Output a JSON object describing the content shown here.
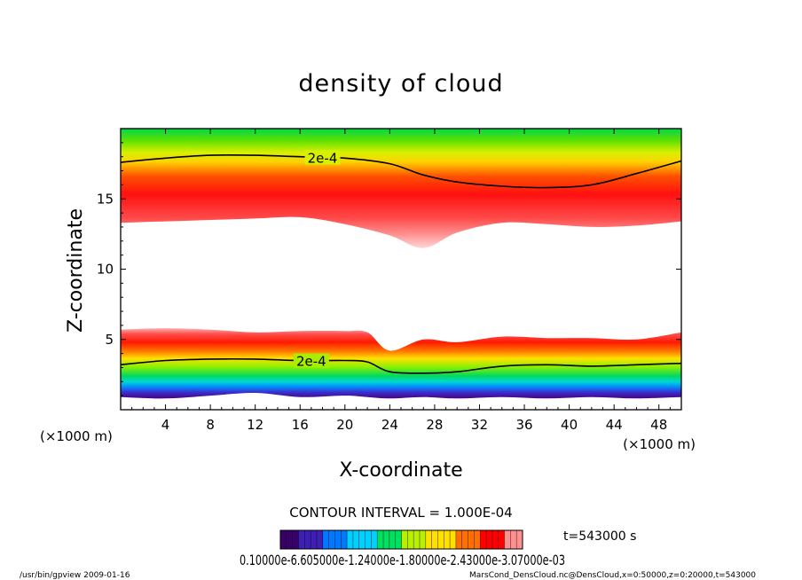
{
  "chart_data": {
    "type": "heatmap",
    "title": "density of cloud",
    "xlabel": "X-coordinate",
    "ylabel": "Z-coordinate",
    "x_unit": "(×1000 m)",
    "y_unit": "(×1000 m)",
    "xlim": [
      0,
      50
    ],
    "ylim": [
      0,
      20
    ],
    "x_ticks": [
      4,
      8,
      12,
      16,
      20,
      24,
      28,
      32,
      36,
      40,
      44,
      48
    ],
    "y_ticks": [
      5,
      10,
      15
    ],
    "contour_label": "2e-4",
    "contour_interval": "CONTOUR INTERVAL = 1.000E-04",
    "time_label": "t=543000 s",
    "colorbar_labels_text": "0.10000e-6.605000e-1.24000e-1.80000e-2.43000e-3.07000e-03",
    "upper_band": {
      "x": [
        0,
        4,
        8,
        12,
        16,
        20,
        24,
        27,
        30,
        34,
        38,
        42,
        46,
        50
      ],
      "bottom": [
        13.3,
        13.4,
        13.5,
        13.6,
        13.7,
        13.2,
        12.4,
        11.5,
        12.6,
        13.3,
        13.2,
        13.0,
        13.1,
        13.4
      ],
      "contour_2e4": [
        17.6,
        17.9,
        18.1,
        18.1,
        18.0,
        17.9,
        17.5,
        16.7,
        16.2,
        15.9,
        15.8,
        16.0,
        16.8,
        17.7
      ]
    },
    "lower_band": {
      "x": [
        0,
        4,
        8,
        12,
        16,
        20,
        22,
        24,
        27,
        30,
        34,
        38,
        42,
        46,
        50
      ],
      "top": [
        5.7,
        5.8,
        5.7,
        5.5,
        5.6,
        5.6,
        5.5,
        4.2,
        5.0,
        4.8,
        5.2,
        5.1,
        5.1,
        5.0,
        5.5
      ],
      "contour_2e4": [
        3.2,
        3.5,
        3.6,
        3.6,
        3.5,
        3.5,
        3.4,
        2.7,
        2.6,
        2.7,
        3.1,
        3.2,
        3.1,
        3.2,
        3.3
      ],
      "base": [
        0.9,
        0.8,
        1.0,
        1.2,
        0.9,
        1.0,
        0.9,
        0.8,
        0.9,
        0.8,
        0.9,
        0.8,
        0.9,
        0.8,
        0.9
      ]
    },
    "colormap": [
      "#3a006a",
      "#3d1fb5",
      "#0078ff",
      "#00d0ff",
      "#00e060",
      "#b8f000",
      "#ffe000",
      "#ff7000",
      "#ff0000",
      "#ff9090",
      "#ffffff"
    ]
  },
  "footer": {
    "left": "/usr/bin/gpview   2009-01-16",
    "right": "MarsCond_DensCloud.nc@DensCloud,x=0:50000,z=0:20000,t=543000"
  }
}
